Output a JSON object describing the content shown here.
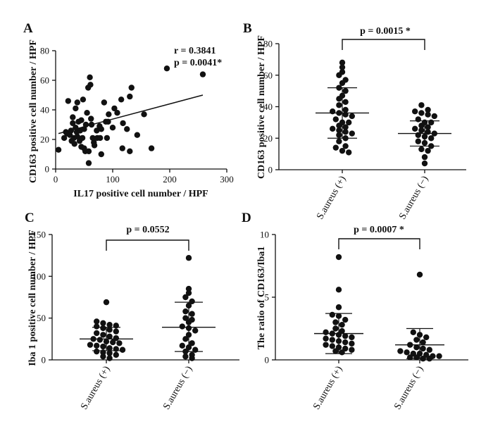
{
  "chart_data": [
    {
      "id": "A",
      "type": "scatter",
      "panel_label": "A",
      "xlabel": "IL17 positive cell number / HPF",
      "ylabel": "CD163 positive cell number / HPF",
      "xlim": [
        0,
        300
      ],
      "ylim": [
        0,
        80
      ],
      "xticks": [
        0,
        100,
        200,
        300
      ],
      "yticks": [
        0,
        20,
        40,
        60,
        80
      ],
      "annotations": [
        "r = 0.3841",
        "p = 0.0041*"
      ],
      "trendline": {
        "x": [
          5,
          258
        ],
        "y": [
          24,
          50
        ]
      },
      "points": [
        [
          5,
          13
        ],
        [
          15,
          21
        ],
        [
          18,
          25
        ],
        [
          20,
          24
        ],
        [
          22,
          46
        ],
        [
          25,
          23
        ],
        [
          27,
          26
        ],
        [
          28,
          19
        ],
        [
          30,
          31
        ],
        [
          30,
          35
        ],
        [
          32,
          21
        ],
        [
          33,
          17
        ],
        [
          35,
          28
        ],
        [
          35,
          41
        ],
        [
          37,
          25
        ],
        [
          38,
          22
        ],
        [
          38,
          45
        ],
        [
          40,
          32
        ],
        [
          42,
          19
        ],
        [
          43,
          26
        ],
        [
          45,
          33
        ],
        [
          45,
          15
        ],
        [
          47,
          21
        ],
        [
          48,
          47
        ],
        [
          50,
          27
        ],
        [
          50,
          14
        ],
        [
          52,
          12
        ],
        [
          53,
          30
        ],
        [
          55,
          38
        ],
        [
          57,
          55
        ],
        [
          58,
          12
        ],
        [
          58,
          4
        ],
        [
          60,
          62
        ],
        [
          61,
          57
        ],
        [
          62,
          34
        ],
        [
          63,
          30
        ],
        [
          65,
          21
        ],
        [
          67,
          18
        ],
        [
          68,
          16
        ],
        [
          72,
          26
        ],
        [
          73,
          21
        ],
        [
          77,
          29
        ],
        [
          78,
          21
        ],
        [
          80,
          10
        ],
        [
          80,
          27
        ],
        [
          85,
          45
        ],
        [
          88,
          32
        ],
        [
          90,
          21
        ],
        [
          92,
          32
        ],
        [
          93,
          37
        ],
        [
          100,
          28
        ],
        [
          103,
          41
        ],
        [
          108,
          38
        ],
        [
          115,
          47
        ],
        [
          117,
          14
        ],
        [
          118,
          31
        ],
        [
          125,
          27
        ],
        [
          130,
          49
        ],
        [
          130,
          12
        ],
        [
          133,
          55
        ],
        [
          143,
          23
        ],
        [
          155,
          37
        ],
        [
          168,
          14
        ],
        [
          195,
          68
        ],
        [
          258,
          64
        ]
      ]
    },
    {
      "id": "B",
      "type": "scatter",
      "panel_label": "B",
      "ylabel": "CD163 positive cell number / HPF",
      "categories": [
        "S.aureus (+)",
        "S.aureus (−)"
      ],
      "ylim": [
        0,
        80
      ],
      "yticks": [
        0,
        20,
        40,
        60,
        80
      ],
      "significance": "p = 0.0015 *",
      "stats": [
        {
          "mean": 36,
          "sd_low": 20,
          "sd_high": 52
        },
        {
          "mean": 23,
          "sd_low": 15,
          "sd_high": 31
        }
      ],
      "points": [
        [
          68,
          65,
          62,
          60,
          57,
          55,
          52,
          50,
          47,
          45,
          43,
          41,
          38,
          37,
          36,
          35,
          34,
          32,
          30,
          30,
          28,
          27,
          26,
          25,
          24,
          23,
          22,
          20,
          18,
          15,
          14,
          12,
          11
        ],
        [
          41,
          38,
          37,
          36,
          35,
          34,
          32,
          30,
          30,
          28,
          27,
          26,
          25,
          24,
          23,
          22,
          21,
          20,
          18,
          17,
          15,
          13,
          12,
          8,
          4
        ]
      ]
    },
    {
      "id": "C",
      "type": "scatter",
      "panel_label": "C",
      "ylabel": "Iba 1 positive cell number / HPF",
      "categories": [
        "S.aureus (+)",
        "S.aureus (−)"
      ],
      "ylim": [
        0,
        150
      ],
      "yticks": [
        0,
        50,
        100,
        150
      ],
      "significance": "p = 0.0552",
      "stats": [
        {
          "mean": 25,
          "sd_low": 11,
          "sd_high": 39
        },
        {
          "mean": 39,
          "sd_low": 10,
          "sd_high": 69
        }
      ],
      "points": [
        [
          69,
          46,
          44,
          42,
          41,
          40,
          38,
          36,
          34,
          32,
          30,
          28,
          26,
          25,
          24,
          22,
          21,
          20,
          18,
          17,
          16,
          14,
          13,
          12,
          10,
          9,
          8,
          6,
          4,
          2
        ],
        [
          122,
          85,
          80,
          75,
          70,
          65,
          58,
          55,
          50,
          48,
          45,
          40,
          38,
          35,
          30,
          25,
          20,
          17,
          15,
          12,
          10,
          6,
          4,
          2
        ]
      ]
    },
    {
      "id": "D",
      "type": "scatter",
      "panel_label": "D",
      "ylabel": "The ratio of CD163/Iba1",
      "categories": [
        "S.aureus (+)",
        "S.aureus (−)"
      ],
      "ylim": [
        0,
        10
      ],
      "yticks": [
        0,
        5,
        10
      ],
      "significance": "p = 0.0007 *",
      "stats": [
        {
          "mean": 2.1,
          "sd_low": 0.5,
          "sd_high": 3.7
        },
        {
          "mean": 1.2,
          "sd_low": 0.1,
          "sd_high": 2.5
        }
      ],
      "points": [
        [
          8.2,
          5.6,
          4.2,
          3.6,
          3.5,
          3.2,
          3.0,
          2.8,
          2.5,
          2.3,
          2.2,
          2.1,
          2.0,
          1.9,
          1.8,
          1.7,
          1.6,
          1.5,
          1.4,
          1.3,
          1.2,
          1.1,
          1.0,
          0.9,
          0.8,
          0.7,
          0.6
        ],
        [
          6.8,
          2.2,
          2.0,
          1.8,
          1.6,
          1.4,
          1.2,
          1.0,
          0.9,
          0.8,
          0.7,
          0.6,
          0.5,
          0.5,
          0.4,
          0.3,
          0.3,
          0.2,
          0.2,
          0.1,
          0.1
        ]
      ]
    }
  ]
}
